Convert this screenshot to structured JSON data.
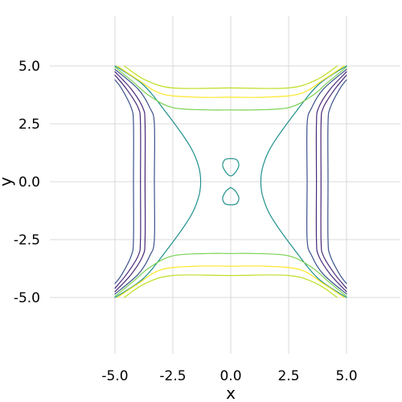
{
  "chart_data": {
    "type": "contour",
    "title": "",
    "xlabel": "x",
    "ylabel": "y",
    "xlim": [
      -7.5,
      7.5
    ],
    "ylim": [
      -7.5,
      7.5
    ],
    "domain": [
      -5,
      5
    ],
    "grid": true,
    "legend": "none",
    "xticks": [
      -5.0,
      -2.5,
      0.0,
      2.5,
      5.0
    ],
    "yticks": [
      -5.0,
      -2.5,
      0.0,
      2.5,
      5.0
    ],
    "xtick_labels": [
      "-5.0",
      "-2.5",
      "0.0",
      "2.5",
      "5.0"
    ],
    "ytick_labels": [
      "-5.0",
      "-2.5",
      "0.0",
      "2.5",
      "5.0"
    ],
    "contours": [
      {
        "color": "#3b528b",
        "pieces": [
          [
            [
              -5.0,
              4.4
            ],
            [
              -4.7,
              4.0
            ],
            [
              -4.3,
              3.2
            ],
            [
              -4.2,
              2.5
            ],
            [
              -4.2,
              0.0
            ],
            [
              -4.2,
              -2.5
            ],
            [
              -4.3,
              -3.2
            ],
            [
              -4.7,
              -4.0
            ],
            [
              -5.0,
              -4.4
            ]
          ],
          [
            [
              5.0,
              4.4
            ],
            [
              4.7,
              4.0
            ],
            [
              4.3,
              3.2
            ],
            [
              4.2,
              2.5
            ],
            [
              4.2,
              0.0
            ],
            [
              4.2,
              -2.5
            ],
            [
              4.3,
              -3.2
            ],
            [
              4.7,
              -4.0
            ],
            [
              5.0,
              -4.4
            ]
          ]
        ]
      },
      {
        "color": "#482878",
        "pieces": [
          [
            [
              -5.0,
              4.6
            ],
            [
              -4.5,
              4.0
            ],
            [
              -4.0,
              3.2
            ],
            [
              -3.9,
              2.5
            ],
            [
              -3.9,
              0.0
            ],
            [
              -3.9,
              -2.5
            ],
            [
              -4.0,
              -3.2
            ],
            [
              -4.5,
              -4.0
            ],
            [
              -5.0,
              -4.6
            ]
          ],
          [
            [
              5.0,
              4.6
            ],
            [
              4.5,
              4.0
            ],
            [
              4.0,
              3.2
            ],
            [
              3.9,
              2.5
            ],
            [
              3.9,
              0.0
            ],
            [
              3.9,
              -2.5
            ],
            [
              4.0,
              -3.2
            ],
            [
              4.5,
              -4.0
            ],
            [
              5.0,
              -4.6
            ]
          ]
        ]
      },
      {
        "color": "#482878",
        "pieces": [
          [
            [
              -5.0,
              4.75
            ],
            [
              -4.3,
              4.0
            ],
            [
              -3.8,
              3.2
            ],
            [
              -3.7,
              2.5
            ],
            [
              -3.7,
              0.0
            ],
            [
              -3.7,
              -2.5
            ],
            [
              -3.8,
              -3.2
            ],
            [
              -4.3,
              -4.0
            ],
            [
              -5.0,
              -4.75
            ]
          ],
          [
            [
              5.0,
              4.75
            ],
            [
              4.3,
              4.0
            ],
            [
              3.8,
              3.2
            ],
            [
              3.7,
              2.5
            ],
            [
              3.7,
              0.0
            ],
            [
              3.7,
              -2.5
            ],
            [
              3.8,
              -3.2
            ],
            [
              4.3,
              -4.0
            ],
            [
              5.0,
              -4.75
            ]
          ]
        ]
      },
      {
        "color": "#3b528b",
        "pieces": [
          [
            [
              -5.0,
              4.85
            ],
            [
              -4.0,
              4.0
            ],
            [
              -3.5,
              3.2
            ],
            [
              -3.3,
              2.5
            ],
            [
              -3.3,
              0.0
            ],
            [
              -3.3,
              -2.5
            ],
            [
              -3.5,
              -3.2
            ],
            [
              -4.0,
              -4.0
            ],
            [
              -5.0,
              -4.85
            ]
          ],
          [
            [
              5.0,
              4.85
            ],
            [
              4.0,
              4.0
            ],
            [
              3.5,
              3.2
            ],
            [
              3.3,
              2.5
            ],
            [
              3.3,
              0.0
            ],
            [
              3.3,
              -2.5
            ],
            [
              3.5,
              -3.2
            ],
            [
              4.0,
              -4.0
            ],
            [
              5.0,
              -4.85
            ]
          ]
        ]
      },
      {
        "color": "#21918c",
        "pieces": [
          [
            [
              -5.0,
              5.0
            ],
            [
              -3.8,
              4.2
            ],
            [
              -2.8,
              3.0
            ],
            [
              -1.8,
              1.6
            ],
            [
              -1.4,
              0.7
            ],
            [
              -1.3,
              0.0
            ],
            [
              -1.4,
              -0.7
            ],
            [
              -1.8,
              -1.6
            ],
            [
              -2.8,
              -3.0
            ],
            [
              -3.8,
              -4.2
            ],
            [
              -5.0,
              -5.0
            ]
          ],
          [
            [
              5.0,
              5.0
            ],
            [
              3.8,
              4.2
            ],
            [
              2.8,
              3.0
            ],
            [
              1.8,
              1.6
            ],
            [
              1.4,
              0.7
            ],
            [
              1.3,
              0.0
            ],
            [
              1.4,
              -0.7
            ],
            [
              1.8,
              -1.6
            ],
            [
              2.8,
              -3.0
            ],
            [
              3.8,
              -4.2
            ],
            [
              5.0,
              -5.0
            ]
          ],
          [
            [
              0.0,
              1.0
            ],
            [
              0.25,
              0.95
            ],
            [
              0.35,
              0.7
            ],
            [
              0.2,
              0.4
            ],
            [
              0.0,
              0.25
            ],
            [
              -0.2,
              0.4
            ],
            [
              -0.35,
              0.7
            ],
            [
              -0.25,
              0.95
            ],
            [
              0.0,
              1.0
            ]
          ],
          [
            [
              0.0,
              -0.25
            ],
            [
              0.2,
              -0.4
            ],
            [
              0.35,
              -0.7
            ],
            [
              0.25,
              -0.95
            ],
            [
              0.0,
              -1.0
            ],
            [
              -0.25,
              -0.95
            ],
            [
              -0.35,
              -0.7
            ],
            [
              -0.2,
              -0.4
            ],
            [
              0.0,
              -0.25
            ]
          ]
        ]
      },
      {
        "color": "#7ad151",
        "pieces": [
          [
            [
              -5.0,
              4.95
            ],
            [
              -4.2,
              4.3
            ],
            [
              -3.5,
              3.7
            ],
            [
              -2.5,
              3.2
            ],
            [
              -1.0,
              3.1
            ],
            [
              0.0,
              3.1
            ],
            [
              1.0,
              3.1
            ],
            [
              2.5,
              3.2
            ],
            [
              3.5,
              3.7
            ],
            [
              4.2,
              4.3
            ],
            [
              5.0,
              4.95
            ]
          ],
          [
            [
              -5.0,
              -4.95
            ],
            [
              -4.2,
              -4.3
            ],
            [
              -3.5,
              -3.7
            ],
            [
              -2.5,
              -3.2
            ],
            [
              -1.0,
              -3.1
            ],
            [
              0.0,
              -3.1
            ],
            [
              1.0,
              -3.1
            ],
            [
              2.5,
              -3.2
            ],
            [
              3.5,
              -3.7
            ],
            [
              4.2,
              -4.3
            ],
            [
              5.0,
              -4.95
            ]
          ]
        ]
      },
      {
        "color": "#fde725",
        "pieces": [
          [
            [
              -4.9,
              5.0
            ],
            [
              -4.0,
              4.4
            ],
            [
              -3.0,
              3.8
            ],
            [
              -1.5,
              3.65
            ],
            [
              0.0,
              3.65
            ],
            [
              1.5,
              3.65
            ],
            [
              3.0,
              3.8
            ],
            [
              4.0,
              4.4
            ],
            [
              4.9,
              5.0
            ]
          ],
          [
            [
              -4.9,
              -5.0
            ],
            [
              -4.0,
              -4.4
            ],
            [
              -3.0,
              -3.8
            ],
            [
              -1.5,
              -3.65
            ],
            [
              0.0,
              -3.65
            ],
            [
              1.5,
              -3.65
            ],
            [
              3.0,
              -3.8
            ],
            [
              4.0,
              -4.4
            ],
            [
              4.9,
              -5.0
            ]
          ]
        ]
      },
      {
        "color": "#bddf26",
        "pieces": [
          [
            [
              -4.6,
              5.0
            ],
            [
              -3.7,
              4.4
            ],
            [
              -2.5,
              4.05
            ],
            [
              0.0,
              4.05
            ],
            [
              2.5,
              4.05
            ],
            [
              3.7,
              4.4
            ],
            [
              4.6,
              5.0
            ]
          ],
          [
            [
              -4.6,
              -5.0
            ],
            [
              -3.7,
              -4.4
            ],
            [
              -2.5,
              -4.05
            ],
            [
              0.0,
              -4.05
            ],
            [
              2.5,
              -4.05
            ],
            [
              3.7,
              -4.4
            ],
            [
              4.6,
              -5.0
            ]
          ]
        ]
      }
    ]
  }
}
